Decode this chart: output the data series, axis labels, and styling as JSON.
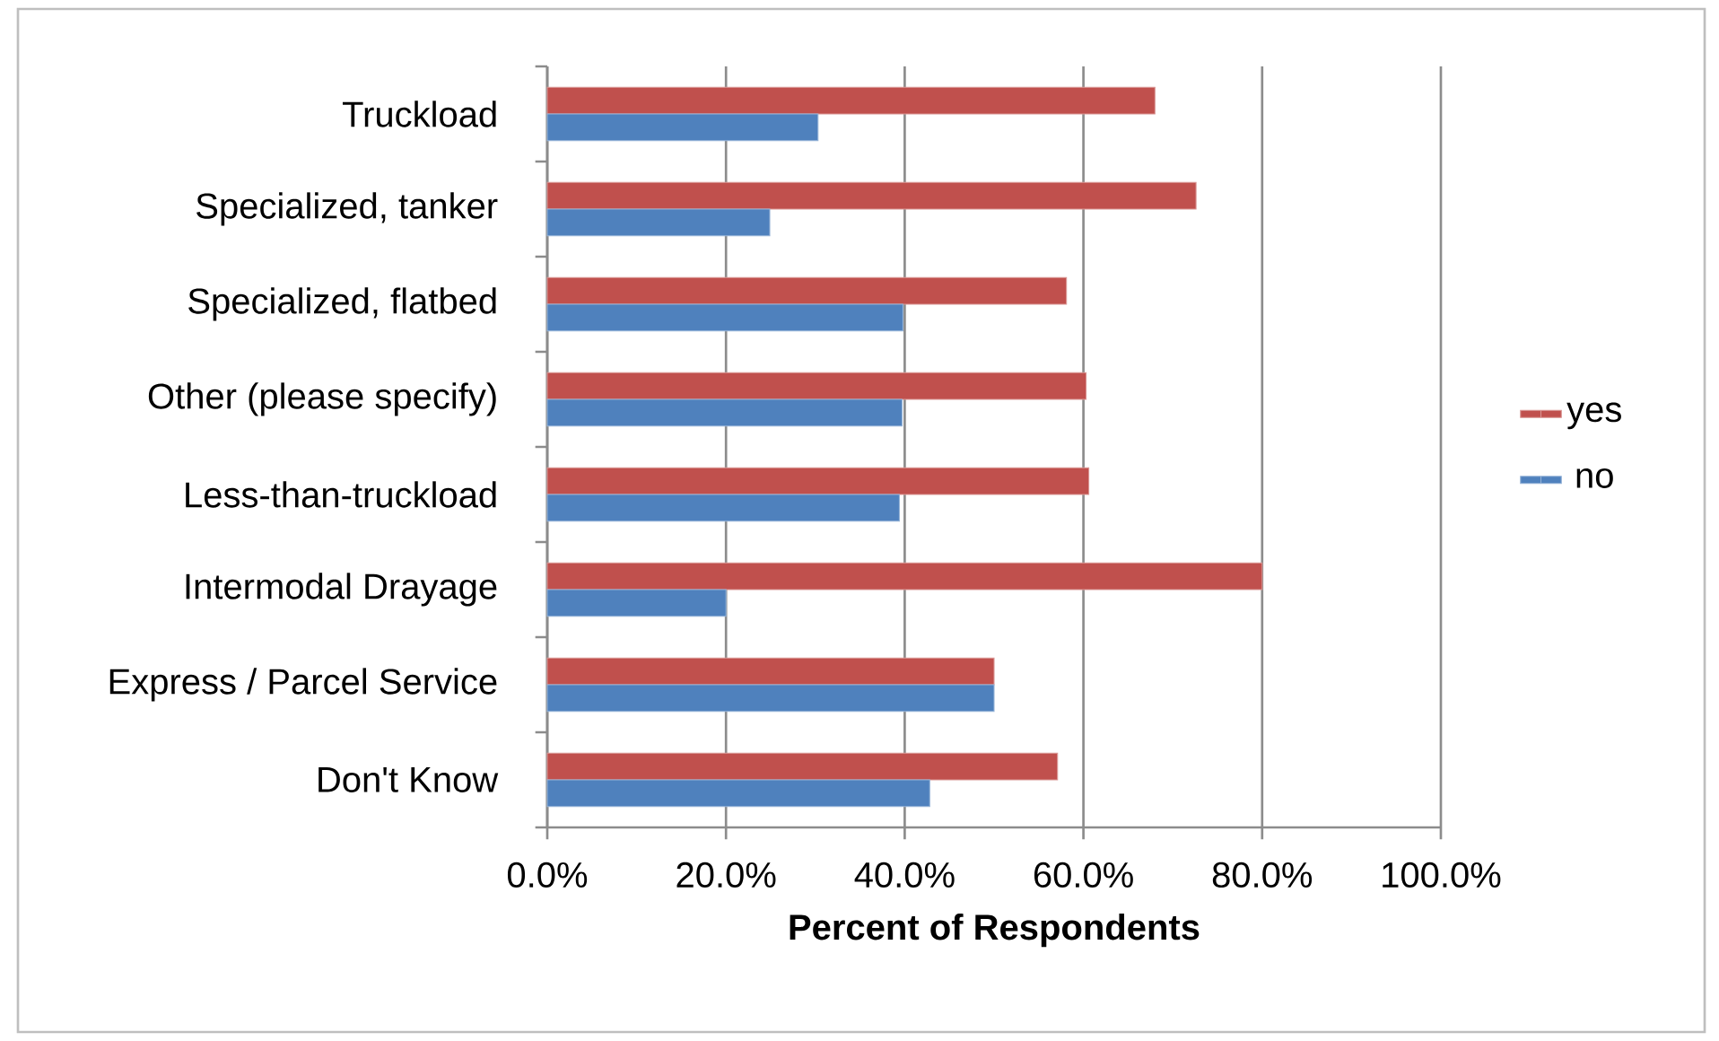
{
  "chart_data": {
    "type": "bar",
    "orientation": "horizontal",
    "xlabel": "Percent of Respondents",
    "categories": [
      "Truckload",
      "Specialized, tanker",
      "Specialized, flatbed",
      "Other (please specify)",
      "Less-than-truckload",
      "Intermodal Drayage",
      "Express / Parcel Service",
      "Don't Know"
    ],
    "series": [
      {
        "name": "yes",
        "color": "#c0504d",
        "values": [
          68.0,
          72.6,
          58.1,
          60.3,
          60.6,
          80.0,
          50.0,
          57.1
        ]
      },
      {
        "name": "no",
        "color": "#4f81bd",
        "values": [
          30.3,
          24.9,
          39.8,
          39.7,
          39.4,
          20.0,
          50.0,
          42.8
        ]
      }
    ],
    "xlim": [
      0,
      100
    ],
    "xticks": [
      {
        "value": 0,
        "label": "0.0%"
      },
      {
        "value": 20,
        "label": "20.0%"
      },
      {
        "value": 40,
        "label": "40.0%"
      },
      {
        "value": 60,
        "label": "60.0%"
      },
      {
        "value": 80,
        "label": "80.0%"
      },
      {
        "value": 100,
        "label": "100.0%"
      }
    ],
    "grid": "x",
    "legend": "right"
  }
}
